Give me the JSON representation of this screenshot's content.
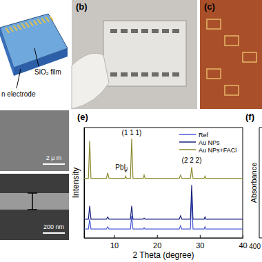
{
  "figure": {
    "panel_labels": [
      "(b)",
      "(c)",
      "(e)",
      "(f)"
    ],
    "a_texts": [
      "SiO₂ film",
      "n electrode"
    ],
    "d_scale_bars": [
      "2 μ m",
      "200 nm"
    ],
    "f": {
      "y_label": "Absorbance",
      "x_tick": "400"
    }
  },
  "chart_data": {
    "type": "line",
    "x_label": "2 Theta (degree)",
    "y_label": "Intensity",
    "x": [
      3,
      4.0,
      4.3,
      4.6,
      6,
      8.2,
      8.5,
      8.8,
      12,
      12.5,
      12.7,
      12.9,
      13.5,
      13.8,
      14.1,
      14.4,
      16,
      16.8,
      17,
      17.2,
      20,
      24,
      25.2,
      25.5,
      25.8,
      27.5,
      27.8,
      28.1,
      28.4,
      30,
      31,
      31.2,
      31.4,
      35,
      40
    ],
    "xlim": [
      3,
      40
    ],
    "xticks": [
      10,
      20,
      30,
      40
    ],
    "ylim": [
      0,
      100
    ],
    "tick_labels": "x",
    "legend": "upper right",
    "series": [
      {
        "name": "Ref",
        "color": "#4a5bd4",
        "values": [
          8,
          8,
          17,
          8,
          8,
          8,
          10,
          8,
          8,
          8,
          8,
          8,
          8,
          8,
          20,
          8,
          8,
          8,
          9,
          8,
          8,
          8,
          8,
          11,
          8,
          8,
          8,
          40,
          8,
          8,
          8,
          10,
          8,
          8,
          8
        ]
      },
      {
        "name": "Au NPs",
        "color": "#1a237e",
        "values": [
          17,
          17,
          29,
          17,
          17,
          17,
          19,
          17,
          17,
          17,
          17,
          17,
          17,
          17,
          29,
          17,
          17,
          17,
          18,
          17,
          17,
          17,
          17,
          20,
          17,
          17,
          17,
          48,
          17,
          17,
          17,
          19,
          17,
          17,
          17
        ]
      },
      {
        "name": "Au NPs+FACl",
        "color": "#8a8a2e",
        "values": [
          54,
          54,
          88,
          54,
          54,
          54,
          59,
          54,
          54,
          54,
          56,
          54,
          54,
          54,
          90,
          54,
          54,
          54,
          57,
          54,
          54,
          54,
          54,
          57,
          54,
          54,
          54,
          64,
          54,
          54,
          54,
          56,
          54,
          54,
          54
        ]
      }
    ],
    "annotations": [
      {
        "text": "(1 1 1)",
        "x": 14.1,
        "y": 93
      },
      {
        "text": "(2 2 2)",
        "x": 28.1,
        "y": 68
      },
      {
        "text": "PbI₂",
        "x": 11.8,
        "y": 62
      },
      {
        "text": "*",
        "x": 12.7,
        "y": 57
      }
    ]
  }
}
